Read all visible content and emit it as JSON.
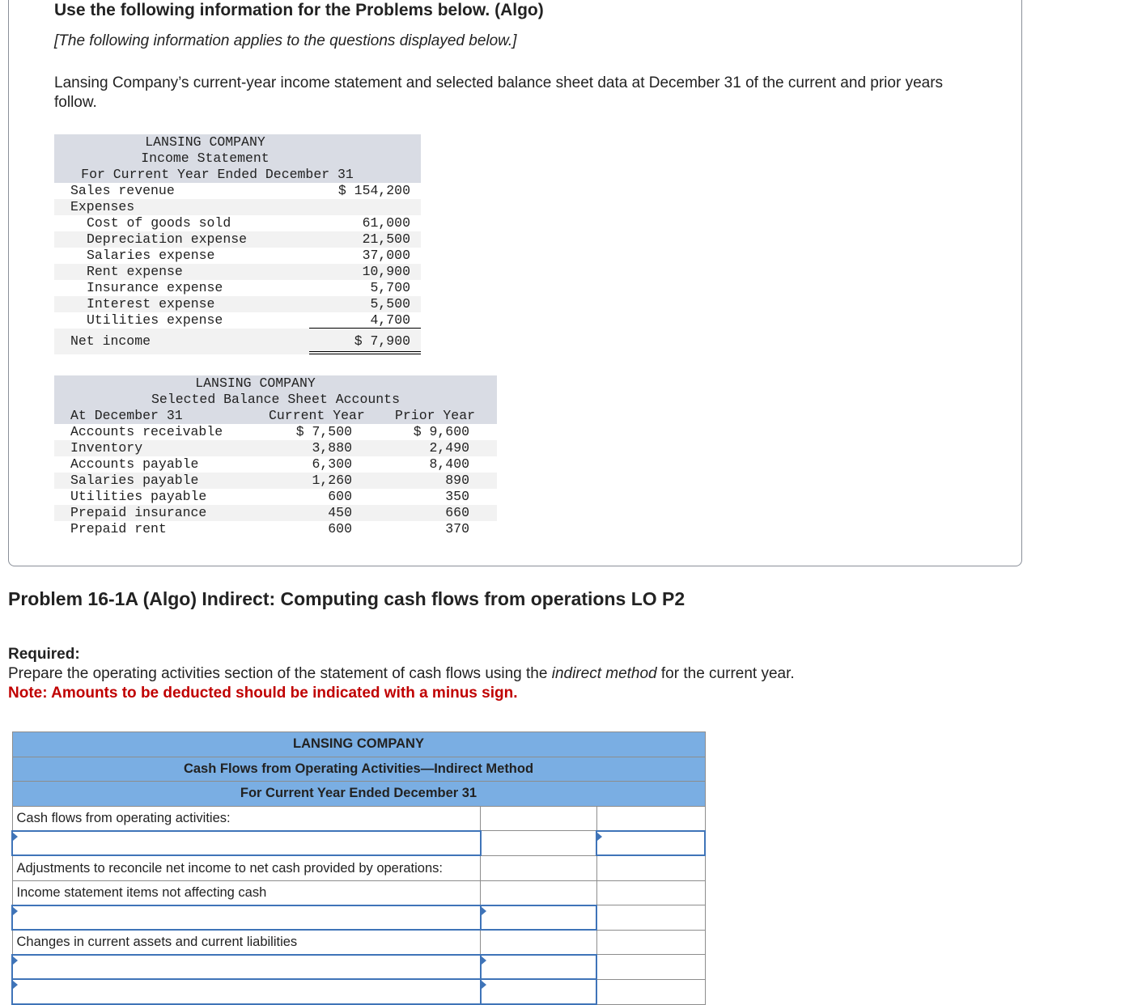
{
  "info": {
    "heading": "Use the following information for the Problems below. (Algo)",
    "subheading": "[The following information applies to the questions displayed below.]",
    "intro": "Lansing Company’s current-year income statement and selected balance sheet data at December 31 of the current and prior years follow."
  },
  "income_statement": {
    "title": [
      "LANSING COMPANY",
      "Income Statement",
      "For Current Year Ended December 31"
    ],
    "sales_label": "Sales revenue",
    "sales_value": "$ 154,200",
    "expenses_label": "Expenses",
    "expenses": [
      {
        "label": "Cost of goods sold",
        "value": "61,000"
      },
      {
        "label": "Depreciation expense",
        "value": "21,500"
      },
      {
        "label": "Salaries expense",
        "value": "37,000"
      },
      {
        "label": "Rent expense",
        "value": "10,900"
      },
      {
        "label": "Insurance expense",
        "value": "5,700"
      },
      {
        "label": "Interest expense",
        "value": "5,500"
      },
      {
        "label": "Utilities expense",
        "value": "4,700"
      }
    ],
    "net_label": "Net income",
    "net_value": "$ 7,900"
  },
  "balance_sheet": {
    "title": [
      "LANSING COMPANY",
      "Selected Balance Sheet Accounts"
    ],
    "col0": "At December 31",
    "col1": "Current Year",
    "col2": "Prior Year",
    "rows": [
      {
        "label": "Accounts receivable",
        "cur": "$ 7,500",
        "prior": "$ 9,600"
      },
      {
        "label": "Inventory",
        "cur": "3,880",
        "prior": "2,490"
      },
      {
        "label": "Accounts payable",
        "cur": "6,300",
        "prior": "8,400"
      },
      {
        "label": "Salaries payable",
        "cur": "1,260",
        "prior": "890"
      },
      {
        "label": "Utilities payable",
        "cur": "600",
        "prior": "350"
      },
      {
        "label": "Prepaid insurance",
        "cur": "450",
        "prior": "660"
      },
      {
        "label": "Prepaid rent",
        "cur": "600",
        "prior": "370"
      }
    ]
  },
  "problem": {
    "title": "Problem 16-1A (Algo) Indirect: Computing cash flows from operations LO P2",
    "required": "Required:",
    "instr_pre": "Prepare the operating activities section of the statement of cash flows using the ",
    "instr_em": "indirect method",
    "instr_post": " for the current year.",
    "note": "Note: Amounts to be deducted should be indicated with a minus sign."
  },
  "cash_flow": {
    "title": [
      "LANSING COMPANY",
      "Cash Flows from Operating Activities—Indirect Method",
      "For Current Year Ended December 31"
    ],
    "header_color": "#7aaee3",
    "labels": {
      "ops": "Cash flows from operating activities:",
      "adj": "Adjustments to reconcile net income to net cash provided by operations:",
      "noncash": "Income statement items not affecting cash",
      "changes": "Changes in current assets and current liabilities"
    }
  }
}
